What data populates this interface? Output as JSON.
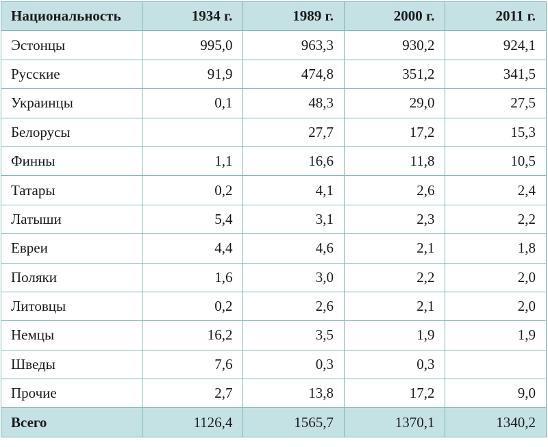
{
  "table": {
    "headers": [
      "Национальность",
      "1934 г.",
      "1989 г.",
      "2000 г.",
      "2011 г."
    ],
    "rows": [
      {
        "name": "Эстонцы",
        "values": [
          "995,0",
          "963,3",
          "930,2",
          "924,1"
        ]
      },
      {
        "name": "Русские",
        "values": [
          "91,9",
          "474,8",
          "351,2",
          "341,5"
        ]
      },
      {
        "name": "Украинцы",
        "values": [
          "0,1",
          "48,3",
          "29,0",
          "27,5"
        ]
      },
      {
        "name": "Белорусы",
        "values": [
          "",
          "27,7",
          "17,2",
          "15,3"
        ]
      },
      {
        "name": "Финны",
        "values": [
          "1,1",
          "16,6",
          "11,8",
          "10,5"
        ]
      },
      {
        "name": "Татары",
        "values": [
          "0,2",
          "4,1",
          "2,6",
          "2,4"
        ]
      },
      {
        "name": "Латыши",
        "values": [
          "5,4",
          "3,1",
          "2,3",
          "2,2"
        ]
      },
      {
        "name": "Евреи",
        "values": [
          "4,4",
          "4,6",
          "2,1",
          "1,8"
        ]
      },
      {
        "name": "Поляки",
        "values": [
          "1,6",
          "3,0",
          "2,2",
          "2,0"
        ]
      },
      {
        "name": "Литовцы",
        "values": [
          "0,2",
          "2,6",
          "2,1",
          "2,0"
        ]
      },
      {
        "name": "Немцы",
        "values": [
          "16,2",
          "3,5",
          "1,9",
          "1,9"
        ]
      },
      {
        "name": "Шведы",
        "values": [
          "7,6",
          "0,3",
          "0,3",
          ""
        ]
      },
      {
        "name": "Прочие",
        "values": [
          "2,7",
          "13,8",
          "17,2",
          "9,0"
        ]
      }
    ],
    "total": {
      "name": "Всего",
      "values": [
        "1126,4",
        "1565,7",
        "1370,1",
        "1340,2"
      ]
    }
  },
  "colors": {
    "header_bg": "#c4e2e3",
    "border": "#7fb6b9"
  }
}
